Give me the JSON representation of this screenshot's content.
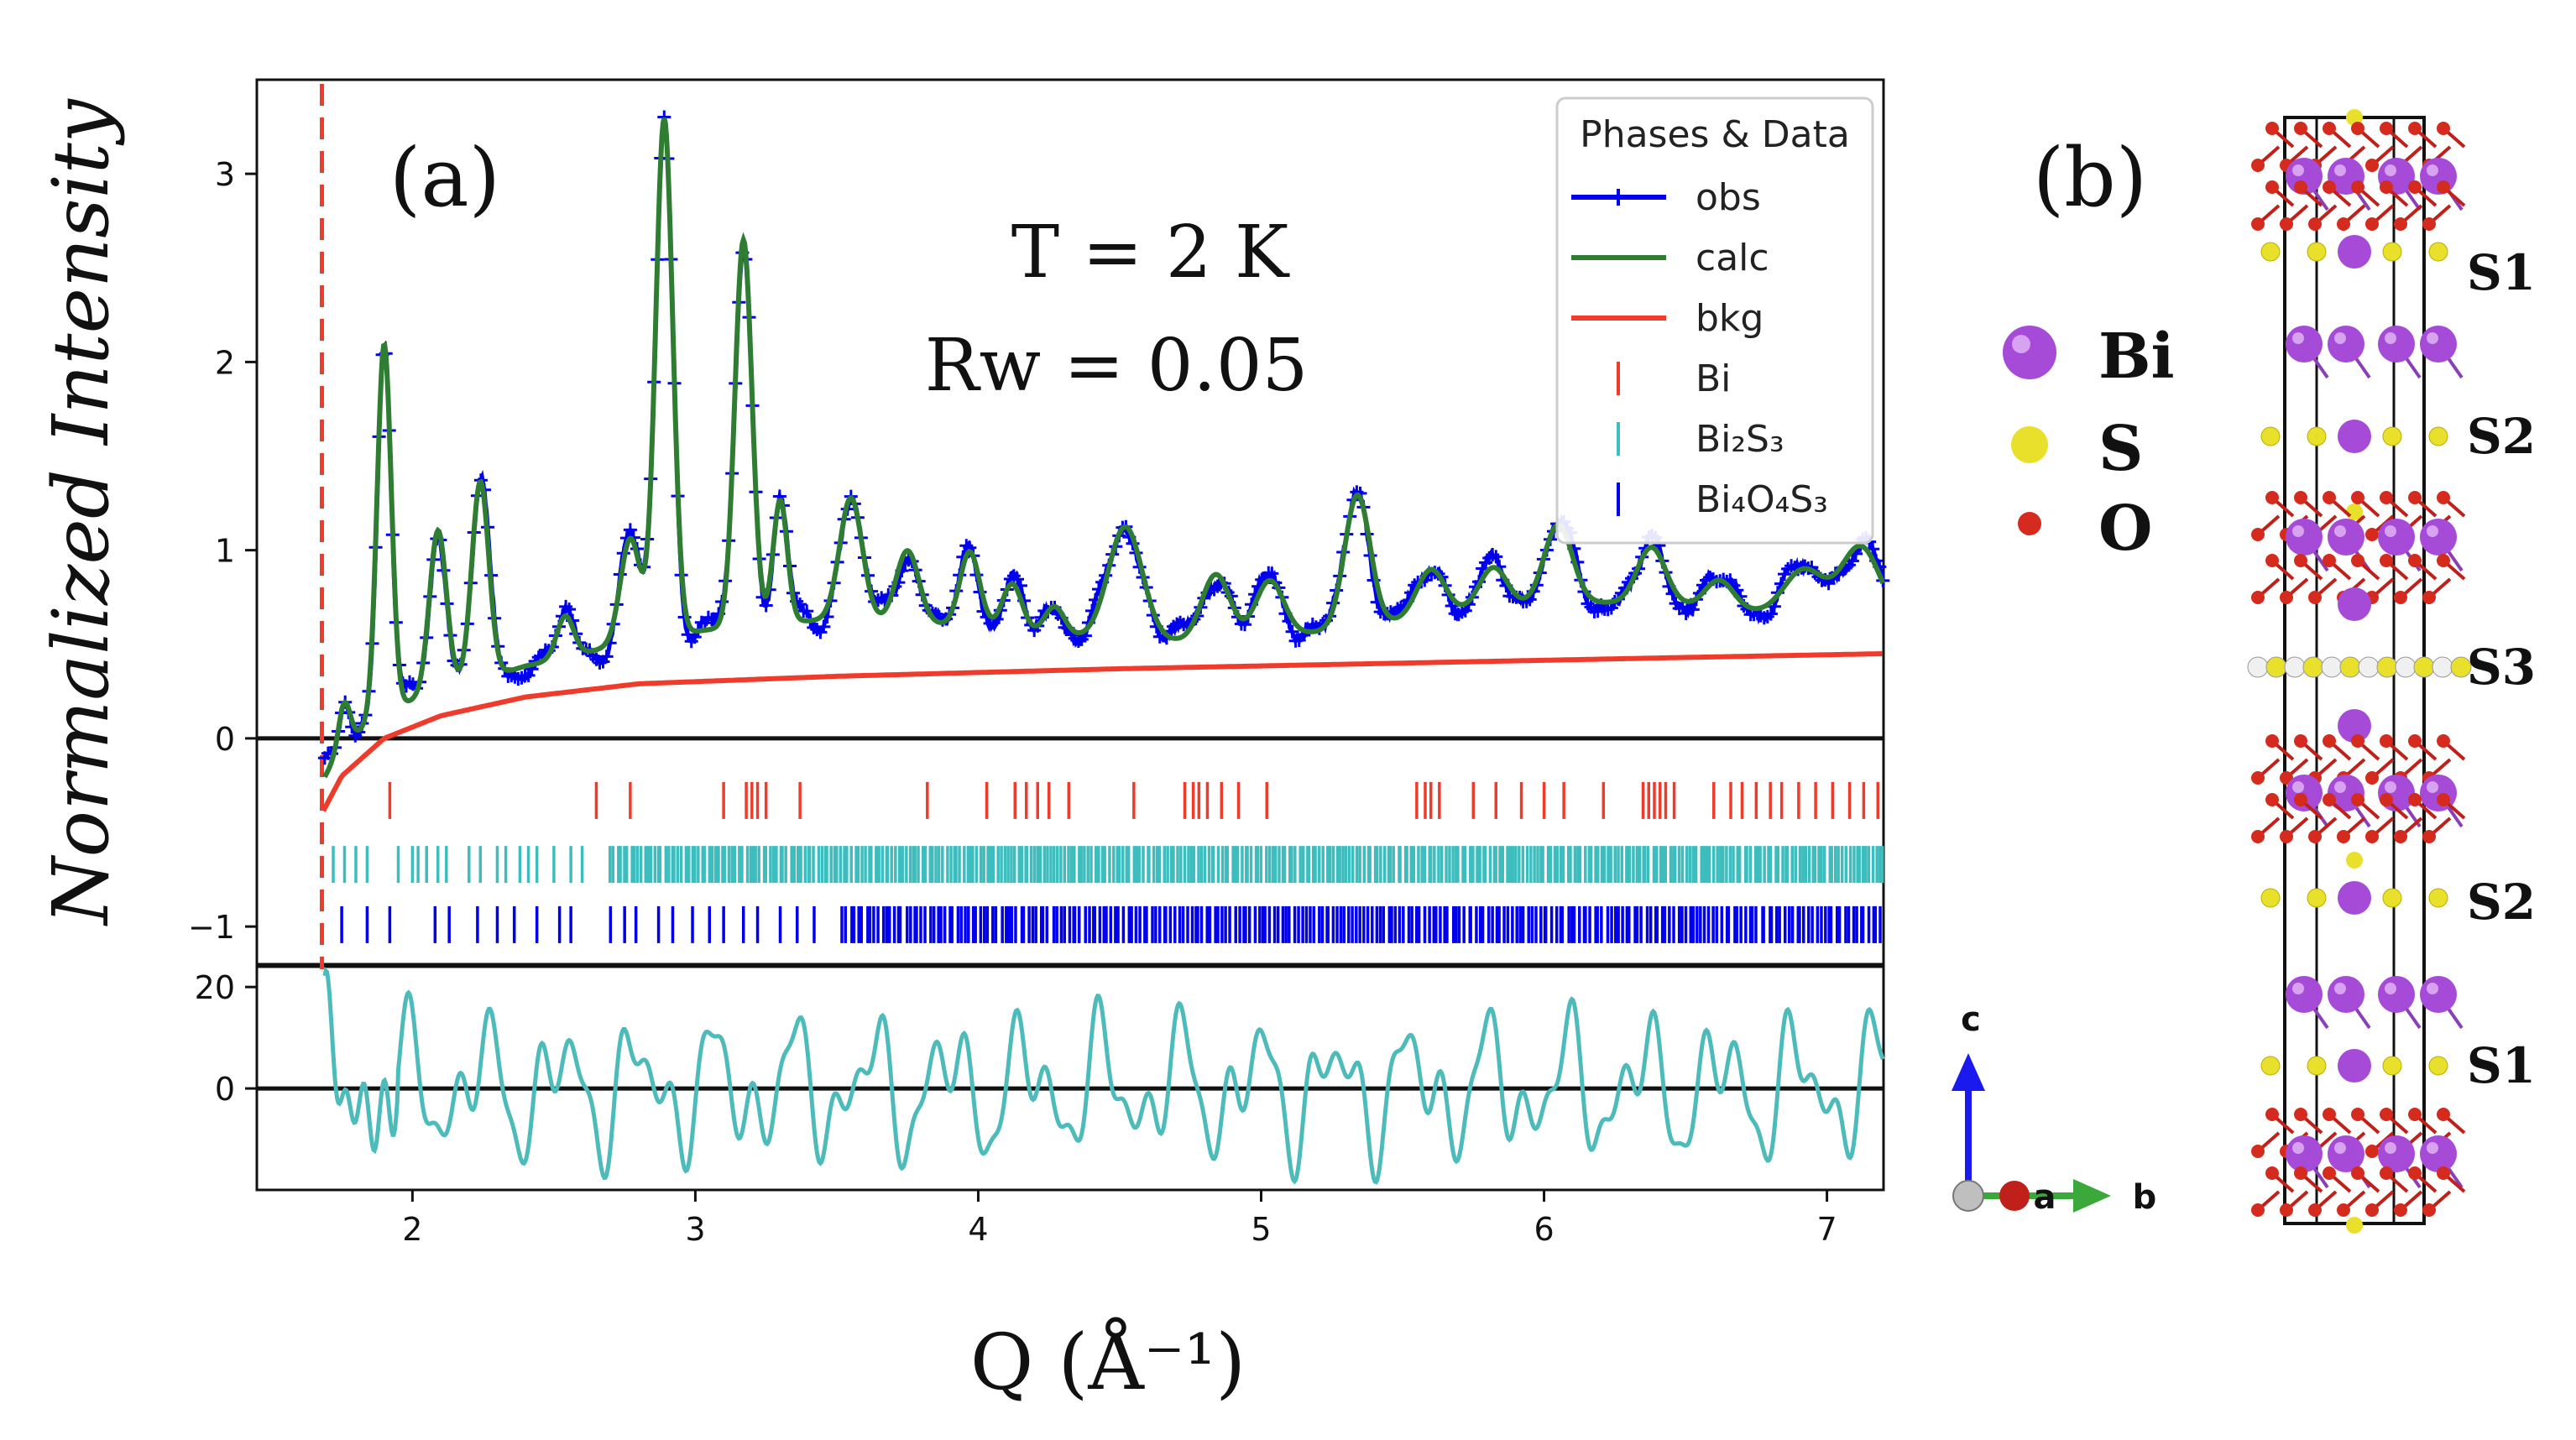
{
  "panel_a": {
    "panel_label": "(a)",
    "annotations": {
      "temperature": "T = 2 K",
      "rw": "Rw = 0.05"
    },
    "legend": {
      "title": "Phases & Data",
      "items": [
        {
          "key": "obs",
          "label": "obs",
          "color": "#0000ee",
          "style": "line-plus"
        },
        {
          "key": "calc",
          "label": "calc",
          "color": "#2e7d32",
          "style": "line"
        },
        {
          "key": "bkg",
          "label": "bkg",
          "color": "#ee3b2b",
          "style": "line"
        },
        {
          "key": "bi",
          "label": "Bi",
          "color": "#ee3b2b",
          "style": "tick"
        },
        {
          "key": "bi2s3",
          "label": "Bi₂S₃",
          "color": "#3dbdbd",
          "style": "tick"
        },
        {
          "key": "bi4o4s3",
          "label": "Bi₄O₄S₃",
          "color": "#0000ee",
          "style": "tick"
        }
      ]
    }
  },
  "panel_b": {
    "panel_label": "(b)",
    "atom_legend": [
      {
        "symbol": "Bi",
        "color": "#a64ad8"
      },
      {
        "symbol": "S",
        "color": "#e8e02a"
      },
      {
        "symbol": "O",
        "color": "#d42b1e"
      }
    ],
    "layer_labels": [
      "S1",
      "S2",
      "S3",
      "S2",
      "S1"
    ],
    "axes": {
      "c": "c",
      "a": "a",
      "b": "b"
    }
  },
  "chart_data": {
    "type": "line",
    "title": "",
    "xlabel": "Q (Å⁻¹)",
    "ylabel": "Normalized Intensity",
    "xlim": [
      1.45,
      7.2
    ],
    "xticks": [
      2,
      3,
      4,
      5,
      6,
      7
    ],
    "x_tick_labels": [
      "2",
      "3",
      "4",
      "5",
      "6",
      "7"
    ],
    "main": {
      "ylim": [
        -1.2,
        3.5
      ],
      "yticks": [
        0,
        1,
        2,
        3
      ],
      "y_tick_labels": [
        "0",
        "1",
        "2",
        "3"
      ],
      "vertical_dashed_line_x": 1.68,
      "extra_ytick": {
        "value": -1,
        "label": "−1"
      },
      "calc_peaks": [
        {
          "x": 1.76,
          "h": 0.22,
          "w": 0.02
        },
        {
          "x": 1.9,
          "h": 1.95,
          "w": 0.025
        },
        {
          "x": 2.09,
          "h": 0.85,
          "w": 0.03
        },
        {
          "x": 2.24,
          "h": 1.05,
          "w": 0.03
        },
        {
          "x": 2.54,
          "h": 0.22,
          "w": 0.03
        },
        {
          "x": 2.77,
          "h": 0.55,
          "w": 0.035
        },
        {
          "x": 2.89,
          "h": 2.75,
          "w": 0.03
        },
        {
          "x": 3.17,
          "h": 2.05,
          "w": 0.03
        },
        {
          "x": 3.3,
          "h": 0.65,
          "w": 0.025
        },
        {
          "x": 3.55,
          "h": 0.65,
          "w": 0.04
        },
        {
          "x": 3.75,
          "h": 0.38,
          "w": 0.04
        },
        {
          "x": 3.97,
          "h": 0.4,
          "w": 0.035
        },
        {
          "x": 4.12,
          "h": 0.25,
          "w": 0.035
        },
        {
          "x": 4.27,
          "h": 0.15,
          "w": 0.035
        },
        {
          "x": 4.52,
          "h": 0.6,
          "w": 0.06
        },
        {
          "x": 4.84,
          "h": 0.35,
          "w": 0.05
        },
        {
          "x": 5.03,
          "h": 0.3,
          "w": 0.05
        },
        {
          "x": 5.34,
          "h": 0.7,
          "w": 0.045
        },
        {
          "x": 5.6,
          "h": 0.25,
          "w": 0.05
        },
        {
          "x": 5.82,
          "h": 0.22,
          "w": 0.05
        },
        {
          "x": 6.05,
          "h": 0.42,
          "w": 0.05
        },
        {
          "x": 6.38,
          "h": 0.3,
          "w": 0.05
        },
        {
          "x": 6.62,
          "h": 0.15,
          "w": 0.05
        },
        {
          "x": 6.92,
          "h": 0.25,
          "w": 0.07
        },
        {
          "x": 7.12,
          "h": 0.4,
          "w": 0.07
        }
      ],
      "bkg": {
        "x": [
          1.68,
          1.75,
          1.9,
          2.1,
          2.4,
          2.8,
          3.5,
          4.5,
          5.5,
          6.5,
          7.2
        ],
        "y": [
          -0.4,
          -0.2,
          0.0,
          0.12,
          0.22,
          0.29,
          0.33,
          0.37,
          0.4,
          0.43,
          0.45
        ]
      },
      "reflections": {
        "bi": {
          "y": -0.33,
          "x": [
            1.92,
            2.65,
            2.77,
            3.1,
            3.18,
            3.2,
            3.22,
            3.25,
            3.37,
            3.82,
            4.03,
            4.13,
            4.17,
            4.21,
            4.25,
            4.32,
            4.55,
            4.73,
            4.76,
            4.78,
            4.81,
            4.86,
            4.92,
            5.02,
            5.55,
            5.58,
            5.6,
            5.63,
            5.75,
            5.83,
            5.92,
            6.0,
            6.07,
            6.21,
            6.35,
            6.37,
            6.39,
            6.41,
            6.43,
            6.46,
            6.6,
            6.66,
            6.7,
            6.75,
            6.8,
            6.84,
            6.9,
            6.96,
            7.02,
            7.08,
            7.13,
            7.18
          ]
        },
        "bi2s3": {
          "y": -0.67,
          "x_dense_from": 2.7,
          "x_sparse": [
            1.72,
            1.76,
            1.8,
            1.84,
            1.95,
            2.0,
            2.02,
            2.05,
            2.09,
            2.12,
            2.2,
            2.24,
            2.3,
            2.33,
            2.38,
            2.41,
            2.44,
            2.5,
            2.56,
            2.6
          ]
        },
        "bi4o4s3": {
          "y": -0.99,
          "x_dense_from": 3.52,
          "x_sparse": [
            1.75,
            1.84,
            1.92,
            2.08,
            2.13,
            2.23,
            2.3,
            2.36,
            2.44,
            2.52,
            2.56,
            2.7,
            2.75,
            2.79,
            2.87,
            2.92,
            2.99,
            3.05,
            3.1,
            3.17,
            3.22,
            3.3,
            3.36,
            3.42
          ]
        }
      }
    },
    "residual": {
      "ylim": [
        -20,
        24
      ],
      "yticks": [
        0,
        20
      ],
      "y_tick_labels": [
        "0",
        "20"
      ],
      "color": "#4ebbbb"
    }
  }
}
